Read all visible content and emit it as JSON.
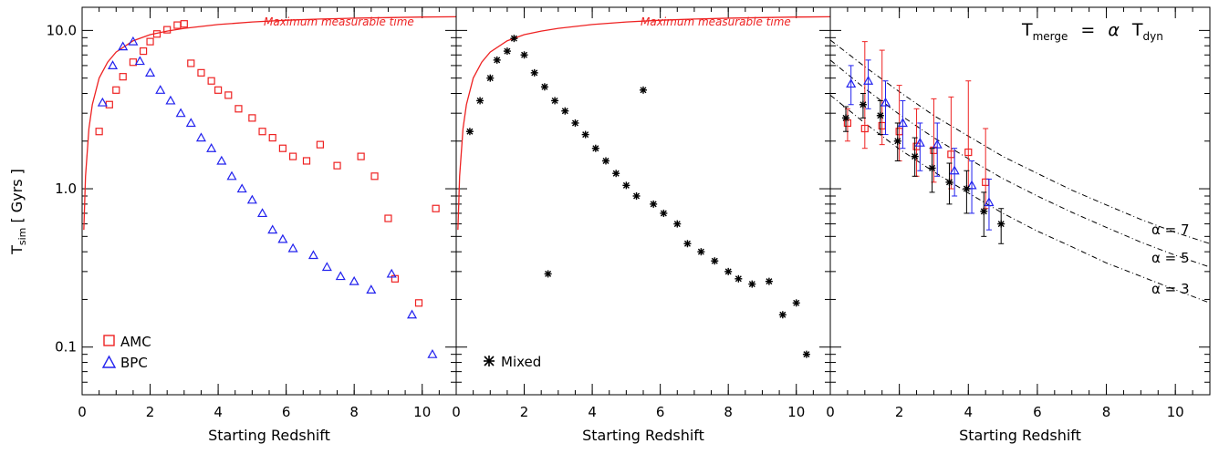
{
  "colors": {
    "amc": "#ee2222",
    "bpc": "#2222ee",
    "mixed": "#000000",
    "curve": "#ee2222",
    "fit": "#000000"
  },
  "y_axis_label": {
    "main": "T",
    "sub": "sim",
    "rest": " [ Gyrs ]"
  },
  "legend": {
    "amc": "AMC",
    "bpc": "BPC",
    "mixed": "Mixed"
  },
  "annotations": {
    "max_time": "Maximum measurable time",
    "formula": {
      "t": "T",
      "merge_sub": "merge",
      "eq": "=",
      "alpha": "α",
      "t2": "T",
      "dyn_sub": "dyn"
    },
    "alpha_labels": [
      "α = 7",
      "α = 5",
      "α = 3"
    ]
  },
  "chart_data": [
    {
      "type": "scatter",
      "panel": "left",
      "xlabel": "Starting Redshift",
      "ylabel": "Tsim [ Gyrs ]",
      "xlim": [
        0,
        11
      ],
      "ylim": [
        0.05,
        14
      ],
      "yscale": "log",
      "xticks": [
        0,
        2,
        4,
        6,
        8,
        10
      ],
      "yticks": [
        0.1,
        1.0,
        10.0
      ],
      "ytick_labels": [
        "0.1",
        "1.0",
        "10.0"
      ],
      "series": [
        {
          "name": "AMC",
          "marker": "square",
          "x": [
            0.5,
            0.8,
            1.0,
            1.2,
            1.5,
            1.8,
            2.0,
            2.2,
            2.5,
            2.8,
            3.0,
            3.2,
            3.5,
            3.8,
            4.0,
            4.3,
            4.6,
            5.0,
            5.3,
            5.6,
            5.9,
            6.2,
            6.6,
            7.0,
            7.5,
            8.2,
            8.6,
            9.0,
            9.2,
            9.9,
            10.4
          ],
          "y": [
            2.3,
            3.4,
            4.2,
            5.1,
            6.3,
            7.4,
            8.5,
            9.5,
            10.1,
            10.8,
            11.0,
            6.2,
            5.4,
            4.8,
            4.2,
            3.9,
            3.2,
            2.8,
            2.3,
            2.1,
            1.8,
            1.6,
            1.5,
            1.9,
            1.4,
            1.6,
            1.2,
            0.65,
            0.27,
            0.19,
            0.75
          ]
        },
        {
          "name": "BPC",
          "marker": "triangle",
          "x": [
            0.6,
            0.9,
            1.2,
            1.5,
            1.7,
            2.0,
            2.3,
            2.6,
            2.9,
            3.2,
            3.5,
            3.8,
            4.1,
            4.4,
            4.7,
            5.0,
            5.3,
            5.6,
            5.9,
            6.2,
            6.8,
            7.2,
            7.6,
            8.0,
            8.5,
            9.1,
            9.7,
            10.3
          ],
          "y": [
            3.5,
            6.0,
            7.9,
            8.5,
            6.4,
            5.4,
            4.2,
            3.6,
            3.0,
            2.6,
            2.1,
            1.8,
            1.5,
            1.2,
            1.0,
            0.85,
            0.7,
            0.55,
            0.48,
            0.42,
            0.38,
            0.32,
            0.28,
            0.26,
            0.23,
            0.29,
            0.16,
            0.09
          ]
        }
      ],
      "boundary": {
        "name": "Maximum measurable time",
        "x": [
          0.05,
          0.1,
          0.2,
          0.3,
          0.5,
          0.75,
          1,
          1.5,
          2,
          2.5,
          3,
          4,
          5,
          6,
          7,
          8,
          9,
          10,
          11
        ],
        "y": [
          0.55,
          1.2,
          2.4,
          3.4,
          5.0,
          6.3,
          7.3,
          8.6,
          9.4,
          9.9,
          10.3,
          10.9,
          11.3,
          11.6,
          11.8,
          11.95,
          12.05,
          12.15,
          12.2
        ]
      }
    },
    {
      "type": "scatter",
      "panel": "middle",
      "xlabel": "Starting Redshift",
      "xlim": [
        0,
        11
      ],
      "ylim": [
        0.05,
        14
      ],
      "yscale": "log",
      "xticks": [
        0,
        2,
        4,
        6,
        8,
        10
      ],
      "series": [
        {
          "name": "Mixed",
          "marker": "asterisk",
          "x": [
            0.4,
            0.7,
            1.0,
            1.2,
            1.5,
            1.7,
            2.0,
            2.3,
            2.6,
            2.7,
            2.9,
            3.2,
            3.5,
            3.8,
            4.1,
            4.4,
            4.7,
            5.0,
            5.3,
            5.5,
            5.8,
            6.1,
            6.5,
            6.8,
            7.2,
            7.6,
            8.0,
            8.3,
            8.7,
            9.2,
            9.6,
            10.0,
            10.3
          ],
          "y": [
            2.3,
            3.6,
            5.0,
            6.5,
            7.4,
            8.9,
            7.0,
            5.4,
            4.4,
            0.29,
            3.6,
            3.1,
            2.6,
            2.2,
            1.8,
            1.5,
            1.25,
            1.05,
            0.9,
            4.2,
            0.8,
            0.7,
            0.6,
            0.45,
            0.4,
            0.35,
            0.3,
            0.27,
            0.25,
            0.26,
            0.16,
            0.19,
            0.09
          ]
        }
      ],
      "boundary": {
        "name": "Maximum measurable time",
        "x": [
          0.05,
          0.1,
          0.2,
          0.3,
          0.5,
          0.75,
          1,
          1.5,
          2,
          2.5,
          3,
          4,
          5,
          6,
          7,
          8,
          9,
          10,
          11
        ],
        "y": [
          0.55,
          1.2,
          2.4,
          3.4,
          5.0,
          6.3,
          7.3,
          8.6,
          9.4,
          9.9,
          10.3,
          10.9,
          11.3,
          11.6,
          11.8,
          11.95,
          12.05,
          12.15,
          12.2
        ]
      }
    },
    {
      "type": "scatter",
      "panel": "right",
      "xlabel": "Starting Redshift",
      "xlim": [
        0,
        11
      ],
      "ylim": [
        0.05,
        14
      ],
      "yscale": "log",
      "xticks": [
        0,
        2,
        4,
        6,
        8,
        10
      ],
      "series": [
        {
          "name": "AMC",
          "marker": "square",
          "x": [
            0.5,
            1.0,
            1.5,
            2.0,
            2.5,
            3.0,
            3.5,
            4.0,
            4.5
          ],
          "y": [
            2.6,
            2.4,
            2.5,
            2.3,
            1.85,
            1.75,
            1.65,
            1.7,
            1.1
          ],
          "ylo": [
            2.0,
            1.8,
            1.9,
            1.5,
            1.2,
            1.1,
            1.0,
            1.0,
            0.75
          ],
          "yhi": [
            3.2,
            8.5,
            7.5,
            4.5,
            3.2,
            3.7,
            3.8,
            4.8,
            2.4
          ]
        },
        {
          "name": "BPC",
          "marker": "triangle",
          "x": [
            0.6,
            1.1,
            1.6,
            2.1,
            2.6,
            3.1,
            3.6,
            4.1,
            4.6
          ],
          "y": [
            4.6,
            4.8,
            3.5,
            2.6,
            1.95,
            1.9,
            1.3,
            1.05,
            0.82
          ],
          "ylo": [
            3.4,
            3.2,
            2.2,
            1.8,
            1.3,
            1.2,
            0.9,
            0.7,
            0.55
          ],
          "yhi": [
            6.0,
            6.5,
            4.8,
            3.6,
            2.6,
            2.6,
            1.8,
            1.5,
            1.15
          ]
        },
        {
          "name": "Mixed",
          "marker": "asterisk",
          "x": [
            0.45,
            0.95,
            1.45,
            1.95,
            2.45,
            2.95,
            3.45,
            3.95,
            4.45,
            4.95
          ],
          "y": [
            2.8,
            3.4,
            2.9,
            2.0,
            1.6,
            1.35,
            1.1,
            1.0,
            0.72,
            0.6
          ],
          "ylo": [
            2.3,
            2.8,
            2.2,
            1.5,
            1.2,
            0.95,
            0.8,
            0.7,
            0.5,
            0.45
          ],
          "yhi": [
            3.3,
            4.0,
            3.6,
            2.6,
            2.1,
            1.8,
            1.45,
            1.3,
            0.95,
            0.75
          ]
        }
      ],
      "fit_curves": [
        {
          "name": "α = 7",
          "x": [
            0,
            1,
            2,
            3,
            4,
            5,
            6,
            7,
            8,
            9,
            10,
            11
          ],
          "y": [
            8.7,
            5.9,
            4.1,
            2.9,
            2.15,
            1.6,
            1.25,
            0.98,
            0.79,
            0.64,
            0.53,
            0.45
          ]
        },
        {
          "name": "α = 5",
          "x": [
            0,
            1,
            2,
            3,
            4,
            5,
            6,
            7,
            8,
            9,
            10,
            11
          ],
          "y": [
            6.5,
            4.3,
            2.95,
            2.1,
            1.55,
            1.16,
            0.9,
            0.71,
            0.57,
            0.46,
            0.38,
            0.32
          ]
        },
        {
          "name": "α = 3",
          "x": [
            0,
            1,
            2,
            3,
            4,
            5,
            6,
            7,
            8,
            9,
            10,
            11
          ],
          "y": [
            3.9,
            2.6,
            1.78,
            1.28,
            0.94,
            0.7,
            0.54,
            0.43,
            0.34,
            0.28,
            0.23,
            0.19
          ]
        }
      ]
    }
  ]
}
